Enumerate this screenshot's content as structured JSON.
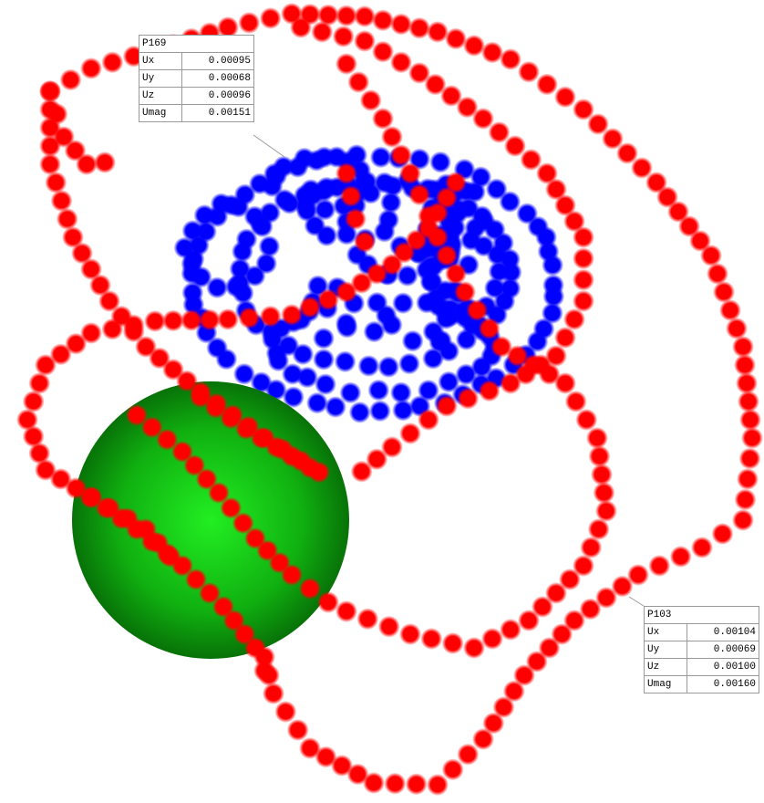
{
  "probes": [
    {
      "id": "P169",
      "rows": [
        [
          "Ux",
          "0.00095"
        ],
        [
          "Uy",
          "0.00068"
        ],
        [
          "Uz",
          "0.00096"
        ],
        [
          "Umag",
          "0.00151"
        ]
      ]
    },
    {
      "id": "P103",
      "rows": [
        [
          "Ux",
          "0.00104"
        ],
        [
          "Uy",
          "0.00069"
        ],
        [
          "Uz",
          "0.00100"
        ],
        [
          "Umag",
          "0.00160"
        ]
      ]
    }
  ]
}
